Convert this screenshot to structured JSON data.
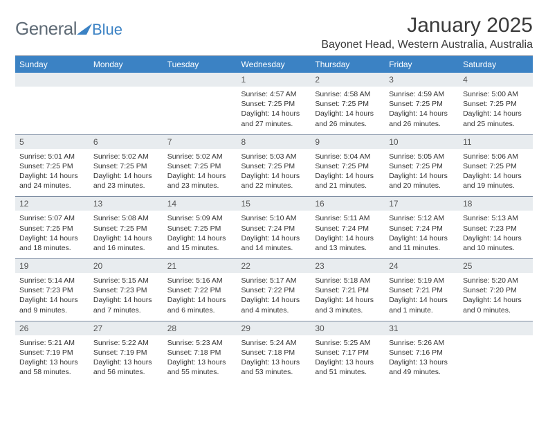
{
  "logo": {
    "general": "General",
    "blue": "Blue"
  },
  "title": "January 2025",
  "location": "Bayonet Head, Western Australia, Australia",
  "colors": {
    "header_bg": "#3b82c4",
    "header_text": "#ffffff",
    "daynum_bg": "#e8ecef",
    "border": "#7a8aa0",
    "text": "#333333",
    "logo_gray": "#5f6b76",
    "logo_blue": "#3b82c4"
  },
  "dayHeaders": [
    "Sunday",
    "Monday",
    "Tuesday",
    "Wednesday",
    "Thursday",
    "Friday",
    "Saturday"
  ],
  "weeks": [
    [
      {
        "n": "",
        "sunrise": "",
        "sunset": "",
        "daylight": ""
      },
      {
        "n": "",
        "sunrise": "",
        "sunset": "",
        "daylight": ""
      },
      {
        "n": "",
        "sunrise": "",
        "sunset": "",
        "daylight": ""
      },
      {
        "n": "1",
        "sunrise": "Sunrise: 4:57 AM",
        "sunset": "Sunset: 7:25 PM",
        "daylight": "Daylight: 14 hours and 27 minutes."
      },
      {
        "n": "2",
        "sunrise": "Sunrise: 4:58 AM",
        "sunset": "Sunset: 7:25 PM",
        "daylight": "Daylight: 14 hours and 26 minutes."
      },
      {
        "n": "3",
        "sunrise": "Sunrise: 4:59 AM",
        "sunset": "Sunset: 7:25 PM",
        "daylight": "Daylight: 14 hours and 26 minutes."
      },
      {
        "n": "4",
        "sunrise": "Sunrise: 5:00 AM",
        "sunset": "Sunset: 7:25 PM",
        "daylight": "Daylight: 14 hours and 25 minutes."
      }
    ],
    [
      {
        "n": "5",
        "sunrise": "Sunrise: 5:01 AM",
        "sunset": "Sunset: 7:25 PM",
        "daylight": "Daylight: 14 hours and 24 minutes."
      },
      {
        "n": "6",
        "sunrise": "Sunrise: 5:02 AM",
        "sunset": "Sunset: 7:25 PM",
        "daylight": "Daylight: 14 hours and 23 minutes."
      },
      {
        "n": "7",
        "sunrise": "Sunrise: 5:02 AM",
        "sunset": "Sunset: 7:25 PM",
        "daylight": "Daylight: 14 hours and 23 minutes."
      },
      {
        "n": "8",
        "sunrise": "Sunrise: 5:03 AM",
        "sunset": "Sunset: 7:25 PM",
        "daylight": "Daylight: 14 hours and 22 minutes."
      },
      {
        "n": "9",
        "sunrise": "Sunrise: 5:04 AM",
        "sunset": "Sunset: 7:25 PM",
        "daylight": "Daylight: 14 hours and 21 minutes."
      },
      {
        "n": "10",
        "sunrise": "Sunrise: 5:05 AM",
        "sunset": "Sunset: 7:25 PM",
        "daylight": "Daylight: 14 hours and 20 minutes."
      },
      {
        "n": "11",
        "sunrise": "Sunrise: 5:06 AM",
        "sunset": "Sunset: 7:25 PM",
        "daylight": "Daylight: 14 hours and 19 minutes."
      }
    ],
    [
      {
        "n": "12",
        "sunrise": "Sunrise: 5:07 AM",
        "sunset": "Sunset: 7:25 PM",
        "daylight": "Daylight: 14 hours and 18 minutes."
      },
      {
        "n": "13",
        "sunrise": "Sunrise: 5:08 AM",
        "sunset": "Sunset: 7:25 PM",
        "daylight": "Daylight: 14 hours and 16 minutes."
      },
      {
        "n": "14",
        "sunrise": "Sunrise: 5:09 AM",
        "sunset": "Sunset: 7:25 PM",
        "daylight": "Daylight: 14 hours and 15 minutes."
      },
      {
        "n": "15",
        "sunrise": "Sunrise: 5:10 AM",
        "sunset": "Sunset: 7:24 PM",
        "daylight": "Daylight: 14 hours and 14 minutes."
      },
      {
        "n": "16",
        "sunrise": "Sunrise: 5:11 AM",
        "sunset": "Sunset: 7:24 PM",
        "daylight": "Daylight: 14 hours and 13 minutes."
      },
      {
        "n": "17",
        "sunrise": "Sunrise: 5:12 AM",
        "sunset": "Sunset: 7:24 PM",
        "daylight": "Daylight: 14 hours and 11 minutes."
      },
      {
        "n": "18",
        "sunrise": "Sunrise: 5:13 AM",
        "sunset": "Sunset: 7:23 PM",
        "daylight": "Daylight: 14 hours and 10 minutes."
      }
    ],
    [
      {
        "n": "19",
        "sunrise": "Sunrise: 5:14 AM",
        "sunset": "Sunset: 7:23 PM",
        "daylight": "Daylight: 14 hours and 9 minutes."
      },
      {
        "n": "20",
        "sunrise": "Sunrise: 5:15 AM",
        "sunset": "Sunset: 7:23 PM",
        "daylight": "Daylight: 14 hours and 7 minutes."
      },
      {
        "n": "21",
        "sunrise": "Sunrise: 5:16 AM",
        "sunset": "Sunset: 7:22 PM",
        "daylight": "Daylight: 14 hours and 6 minutes."
      },
      {
        "n": "22",
        "sunrise": "Sunrise: 5:17 AM",
        "sunset": "Sunset: 7:22 PM",
        "daylight": "Daylight: 14 hours and 4 minutes."
      },
      {
        "n": "23",
        "sunrise": "Sunrise: 5:18 AM",
        "sunset": "Sunset: 7:21 PM",
        "daylight": "Daylight: 14 hours and 3 minutes."
      },
      {
        "n": "24",
        "sunrise": "Sunrise: 5:19 AM",
        "sunset": "Sunset: 7:21 PM",
        "daylight": "Daylight: 14 hours and 1 minute."
      },
      {
        "n": "25",
        "sunrise": "Sunrise: 5:20 AM",
        "sunset": "Sunset: 7:20 PM",
        "daylight": "Daylight: 14 hours and 0 minutes."
      }
    ],
    [
      {
        "n": "26",
        "sunrise": "Sunrise: 5:21 AM",
        "sunset": "Sunset: 7:19 PM",
        "daylight": "Daylight: 13 hours and 58 minutes."
      },
      {
        "n": "27",
        "sunrise": "Sunrise: 5:22 AM",
        "sunset": "Sunset: 7:19 PM",
        "daylight": "Daylight: 13 hours and 56 minutes."
      },
      {
        "n": "28",
        "sunrise": "Sunrise: 5:23 AM",
        "sunset": "Sunset: 7:18 PM",
        "daylight": "Daylight: 13 hours and 55 minutes."
      },
      {
        "n": "29",
        "sunrise": "Sunrise: 5:24 AM",
        "sunset": "Sunset: 7:18 PM",
        "daylight": "Daylight: 13 hours and 53 minutes."
      },
      {
        "n": "30",
        "sunrise": "Sunrise: 5:25 AM",
        "sunset": "Sunset: 7:17 PM",
        "daylight": "Daylight: 13 hours and 51 minutes."
      },
      {
        "n": "31",
        "sunrise": "Sunrise: 5:26 AM",
        "sunset": "Sunset: 7:16 PM",
        "daylight": "Daylight: 13 hours and 49 minutes."
      },
      {
        "n": "",
        "sunrise": "",
        "sunset": "",
        "daylight": ""
      }
    ]
  ]
}
